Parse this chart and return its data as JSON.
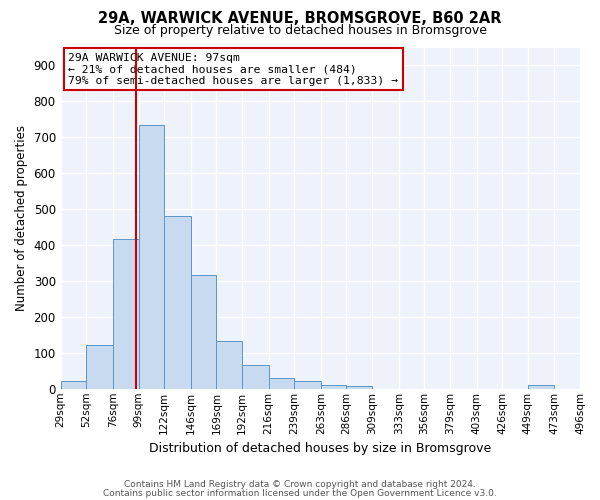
{
  "title": "29A, WARWICK AVENUE, BROMSGROVE, B60 2AR",
  "subtitle": "Size of property relative to detached houses in Bromsgrove",
  "xlabel": "Distribution of detached houses by size in Bromsgrove",
  "ylabel": "Number of detached properties",
  "bar_color": "#c8daf0",
  "bar_edge_color": "#5a96c8",
  "bin_labels": [
    "29sqm",
    "52sqm",
    "76sqm",
    "99sqm",
    "122sqm",
    "146sqm",
    "169sqm",
    "192sqm",
    "216sqm",
    "239sqm",
    "263sqm",
    "286sqm",
    "309sqm",
    "333sqm",
    "356sqm",
    "379sqm",
    "403sqm",
    "426sqm",
    "449sqm",
    "473sqm",
    "496sqm"
  ],
  "bin_edges": [
    29,
    52,
    76,
    99,
    122,
    146,
    169,
    192,
    216,
    239,
    263,
    286,
    309,
    333,
    356,
    379,
    403,
    426,
    449,
    473,
    496
  ],
  "bar_heights": [
    22,
    122,
    418,
    733,
    482,
    316,
    133,
    65,
    29,
    23,
    11,
    8,
    0,
    0,
    0,
    0,
    0,
    0,
    10,
    0,
    0
  ],
  "ylim": [
    0,
    950
  ],
  "yticks": [
    0,
    100,
    200,
    300,
    400,
    500,
    600,
    700,
    800,
    900
  ],
  "vline_x": 97,
  "vline_color": "#cc0000",
  "annotation_title": "29A WARWICK AVENUE: 97sqm",
  "annotation_line1": "← 21% of detached houses are smaller (484)",
  "annotation_line2": "79% of semi-detached houses are larger (1,833) →",
  "annotation_box_edge": "#cc0000",
  "annotation_box_bg": "white",
  "footnote1": "Contains HM Land Registry data © Crown copyright and database right 2024.",
  "footnote2": "Contains public sector information licensed under the Open Government Licence v3.0.",
  "background_color": "#eef2fa",
  "axes_bg_color": "#eef2fa",
  "grid_color": "white",
  "title_fontsize": 10.5,
  "subtitle_fontsize": 9,
  "ylabel_fontsize": 8.5,
  "xlabel_fontsize": 9,
  "ytick_fontsize": 8.5,
  "xtick_fontsize": 7.5,
  "footnote_fontsize": 6.5
}
